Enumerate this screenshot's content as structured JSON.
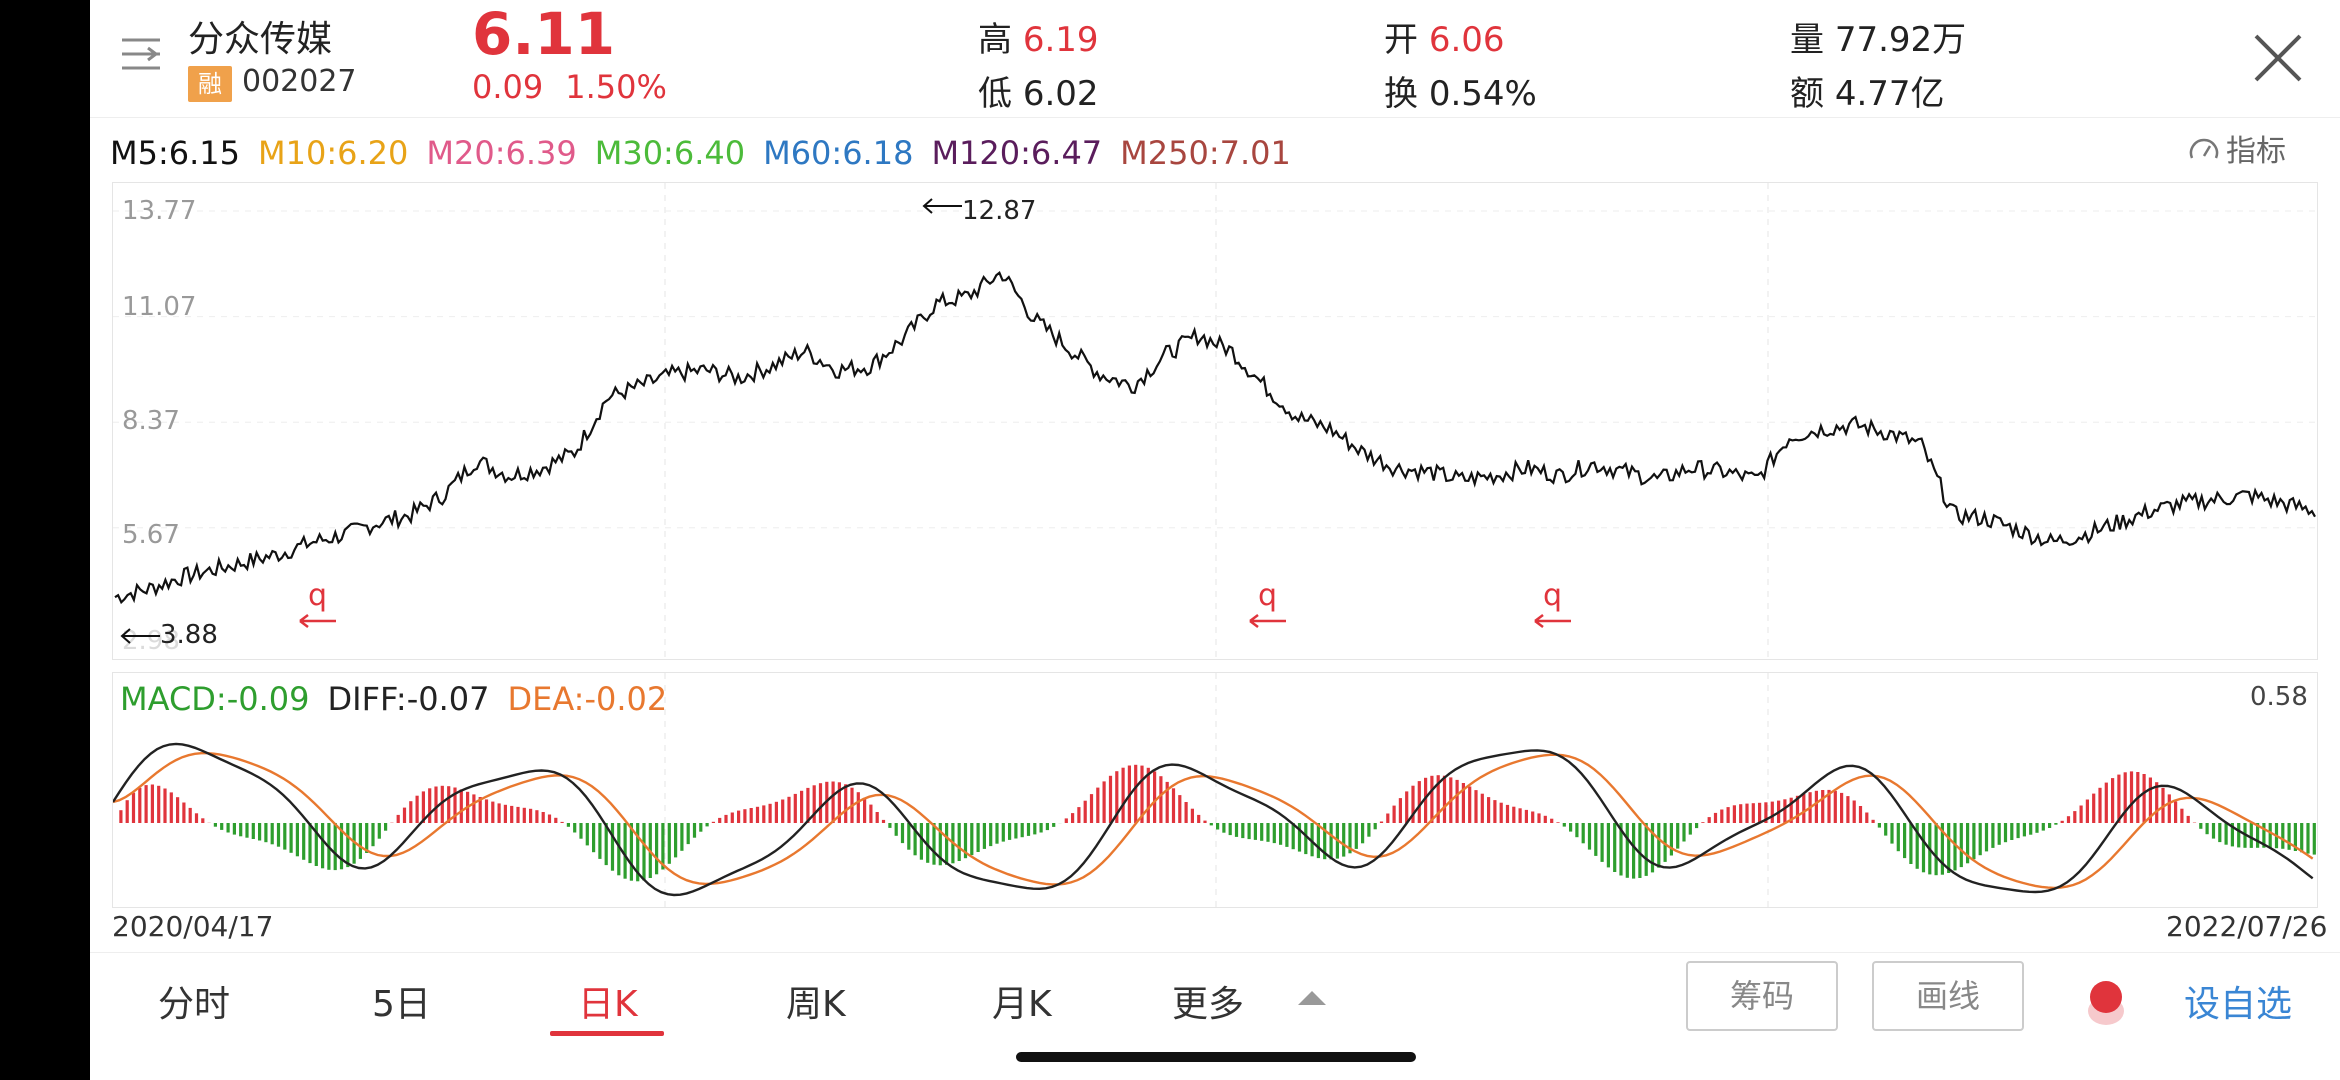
{
  "header": {
    "stock_name": "分众传媒",
    "badge": "融",
    "code": "002027",
    "price": "6.11",
    "change_abs": "0.09",
    "change_pct": "1.50%",
    "stats": [
      {
        "label": "高",
        "value": "6.19",
        "color": "red"
      },
      {
        "label": "低",
        "value": "6.02",
        "color": "dark"
      },
      {
        "label": "开",
        "value": "6.06",
        "color": "red"
      },
      {
        "label": "换",
        "value": "0.54%",
        "color": "dark"
      },
      {
        "label": "量",
        "value": "77.92万",
        "color": "dark"
      },
      {
        "label": "额",
        "value": "4.77亿",
        "color": "dark"
      }
    ]
  },
  "ma": [
    {
      "label": "M5:6.15",
      "color": "#111111"
    },
    {
      "label": "M10:6.20",
      "color": "#e8a317"
    },
    {
      "label": "M20:6.39",
      "color": "#e05a8a"
    },
    {
      "label": "M30:6.40",
      "color": "#4cbb3a"
    },
    {
      "label": "M60:6.18",
      "color": "#2e78c2"
    },
    {
      "label": "M120:6.47",
      "color": "#5a1d5c"
    },
    {
      "label": "M250:7.01",
      "color": "#a8463f"
    }
  ],
  "indicator_label": "指标",
  "kline": {
    "y_ticks": [
      "13.77",
      "11.07",
      "8.37",
      "5.67",
      "2.98"
    ],
    "high_label": "12.87",
    "low_label": "3.88",
    "marker": "q"
  },
  "macd": {
    "macd_label": "MACD:-0.09",
    "diff_label": "DIFF:-0.07",
    "dea_label": "DEA:-0.02",
    "max_label": "0.58",
    "colors": {
      "macd": "#2e9e2e",
      "diff": "#222222",
      "dea": "#e8782f"
    }
  },
  "dates": {
    "start": "2020/04/17",
    "end": "2022/07/26"
  },
  "tabs": [
    {
      "label": "分时",
      "active": false
    },
    {
      "label": "5日",
      "active": false
    },
    {
      "label": "日K",
      "active": true
    },
    {
      "label": "周K",
      "active": false
    },
    {
      "label": "月K",
      "active": false
    },
    {
      "label": "更多",
      "active": false
    }
  ],
  "tools": {
    "chips": "筹码",
    "draw": "画线",
    "favorite": "设自选"
  },
  "chart_data": {
    "type": "line",
    "ylim": [
      2.98,
      13.77
    ],
    "x_range": [
      "2020/04/17",
      "2022/07/26"
    ],
    "series": [
      {
        "values": [
          3.9,
          4.1,
          4.4,
          4.6,
          4.8,
          5.0,
          5.3,
          5.5,
          5.8,
          6.0,
          6.5,
          7.4,
          7.0,
          7.2,
          7.6,
          9.0,
          9.3,
          9.6,
          9.7,
          9.5,
          9.8,
          10.2,
          9.7,
          9.8,
          10.5,
          11.4,
          11.6,
          12.2,
          11.0,
          10.3,
          9.6,
          9.3,
          10.1,
          10.6,
          10.2,
          9.3,
          8.5,
          8.2,
          7.6,
          7.2,
          7.1,
          6.9,
          7.0,
          7.2,
          7.0,
          7.3,
          7.1,
          6.9,
          7.2,
          7.1,
          6.9,
          8.0,
          8.2,
          8.3,
          8.1,
          7.8,
          6.0,
          5.9,
          5.6,
          5.3,
          5.5,
          5.8,
          6.1,
          6.3,
          6.4,
          6.5,
          6.3,
          6.1
        ]
      }
    ]
  }
}
